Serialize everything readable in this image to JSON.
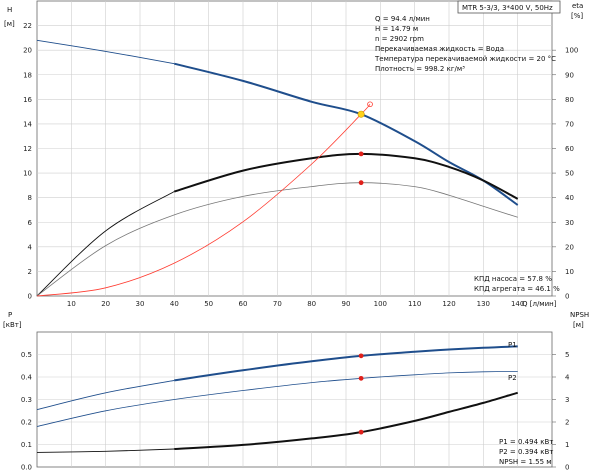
{
  "title": "MTR 5-3/3, 3*400 V, 50Hz",
  "info_lines": [
    "Q = 94.4 л/мин",
    "H = 14.79 м",
    "n = 2902 rpm",
    "Перекачиваемая жидкость = Вода",
    "Температура перекачиваемой жидкости = 20 °C",
    "Плотность = 998.2 кг/м³"
  ],
  "top_summary": [
    "КПД насоса = 57.8 %",
    "КПД агрегата = 46.1 %"
  ],
  "bottom_summary": [
    "P1 = 0.494 кВт",
    "P2 = 0.394 кВт",
    "NPSH = 1.55 м"
  ],
  "axis_labels": {
    "h_name": "H",
    "h_unit": "[м]",
    "eta_name": "eta",
    "eta_unit": "[%]",
    "p_name": "P",
    "p_unit": "[кВт]",
    "npsh_name": "NPSH",
    "npsh_unit": "[м]",
    "q_label": "Q [л/мин]"
  },
  "chart_data": [
    {
      "type": "line",
      "title": "",
      "xlabel": "Q [л/мин]",
      "ylabel": "H [м]",
      "y2label": "eta [%]",
      "xlim": [
        0,
        150
      ],
      "ylim": [
        0,
        24
      ],
      "y2lim": [
        0,
        120
      ],
      "x_ticks": [
        10,
        20,
        30,
        40,
        50,
        60,
        70,
        80,
        90,
        100,
        110,
        120,
        130,
        140
      ],
      "y_ticks": [
        0,
        2,
        4,
        6,
        8,
        10,
        12,
        14,
        16,
        18,
        20,
        22
      ],
      "y2_ticks": [
        0,
        10,
        20,
        30,
        40,
        50,
        60,
        70,
        80,
        90,
        100
      ],
      "grid": true,
      "series": [
        {
          "name": "",
          "axis": "H",
          "color": "#1f4e8c",
          "x": [
            0,
            20,
            40,
            60,
            80,
            94.4,
            110,
            120,
            130,
            140
          ],
          "y": [
            20.8,
            19.9,
            18.9,
            17.5,
            15.8,
            14.79,
            12.6,
            10.9,
            9.4,
            7.4
          ]
        },
        {
          "name": "",
          "axis": "eta",
          "color": "#111111",
          "x": [
            0,
            20,
            40,
            60,
            80,
            94.4,
            110,
            120,
            130,
            140
          ],
          "y": [
            0,
            26.5,
            42.5,
            51,
            56,
            57.8,
            56,
            52.5,
            47,
            39.5
          ]
        },
        {
          "name": "",
          "axis": "eta",
          "color": "#777777",
          "x": [
            0,
            20,
            40,
            60,
            80,
            94.4,
            110,
            120,
            130,
            140
          ],
          "y": [
            0,
            20.5,
            33,
            40.5,
            44.5,
            46.1,
            44.5,
            41,
            36.5,
            32
          ]
        },
        {
          "name": "",
          "axis": "H",
          "color": "#ff3b30",
          "x": [
            0,
            20,
            40,
            60,
            80,
            94.4,
            97
          ],
          "y": [
            0,
            0.67,
            2.68,
            6.04,
            10.74,
            14.79,
            15.6
          ]
        }
      ],
      "operating_point": {
        "q": 94.4,
        "h": 14.79,
        "eta_pump": 57.8,
        "eta_unit": 46.1
      }
    },
    {
      "type": "line",
      "title": "",
      "xlabel": "Q [л/мин]",
      "ylabel": "P [кВт]",
      "y2label": "NPSH [м]",
      "xlim": [
        0,
        150
      ],
      "ylim": [
        0,
        0.6
      ],
      "y2lim": [
        0,
        6
      ],
      "y_ticks": [
        0,
        0.1,
        0.2,
        0.3,
        0.4,
        0.5
      ],
      "y2_ticks": [
        0,
        1,
        2,
        3,
        4,
        5
      ],
      "grid": true,
      "series": [
        {
          "name": "P1",
          "axis": "P",
          "color": "#1f4e8c",
          "x": [
            0,
            20,
            40,
            60,
            80,
            94.4,
            110,
            120,
            130,
            140
          ],
          "y": [
            0.255,
            0.33,
            0.385,
            0.43,
            0.47,
            0.494,
            0.512,
            0.522,
            0.53,
            0.536
          ]
        },
        {
          "name": "P2",
          "axis": "P",
          "color": "#1f4e8c",
          "x": [
            0,
            20,
            40,
            60,
            80,
            94.4,
            110,
            120,
            130,
            140
          ],
          "y": [
            0.18,
            0.25,
            0.3,
            0.34,
            0.375,
            0.394,
            0.41,
            0.418,
            0.423,
            0.425
          ]
        },
        {
          "name": "",
          "axis": "NPSH",
          "color": "#111111",
          "x": [
            0,
            20,
            40,
            60,
            80,
            94.4,
            110,
            120,
            130,
            140
          ],
          "y": [
            0.65,
            0.7,
            0.8,
            0.98,
            1.27,
            1.55,
            2.05,
            2.45,
            2.85,
            3.3
          ]
        }
      ],
      "operating_point": {
        "q": 94.4,
        "p1": 0.494,
        "p2": 0.394,
        "npsh": 1.55
      }
    }
  ]
}
